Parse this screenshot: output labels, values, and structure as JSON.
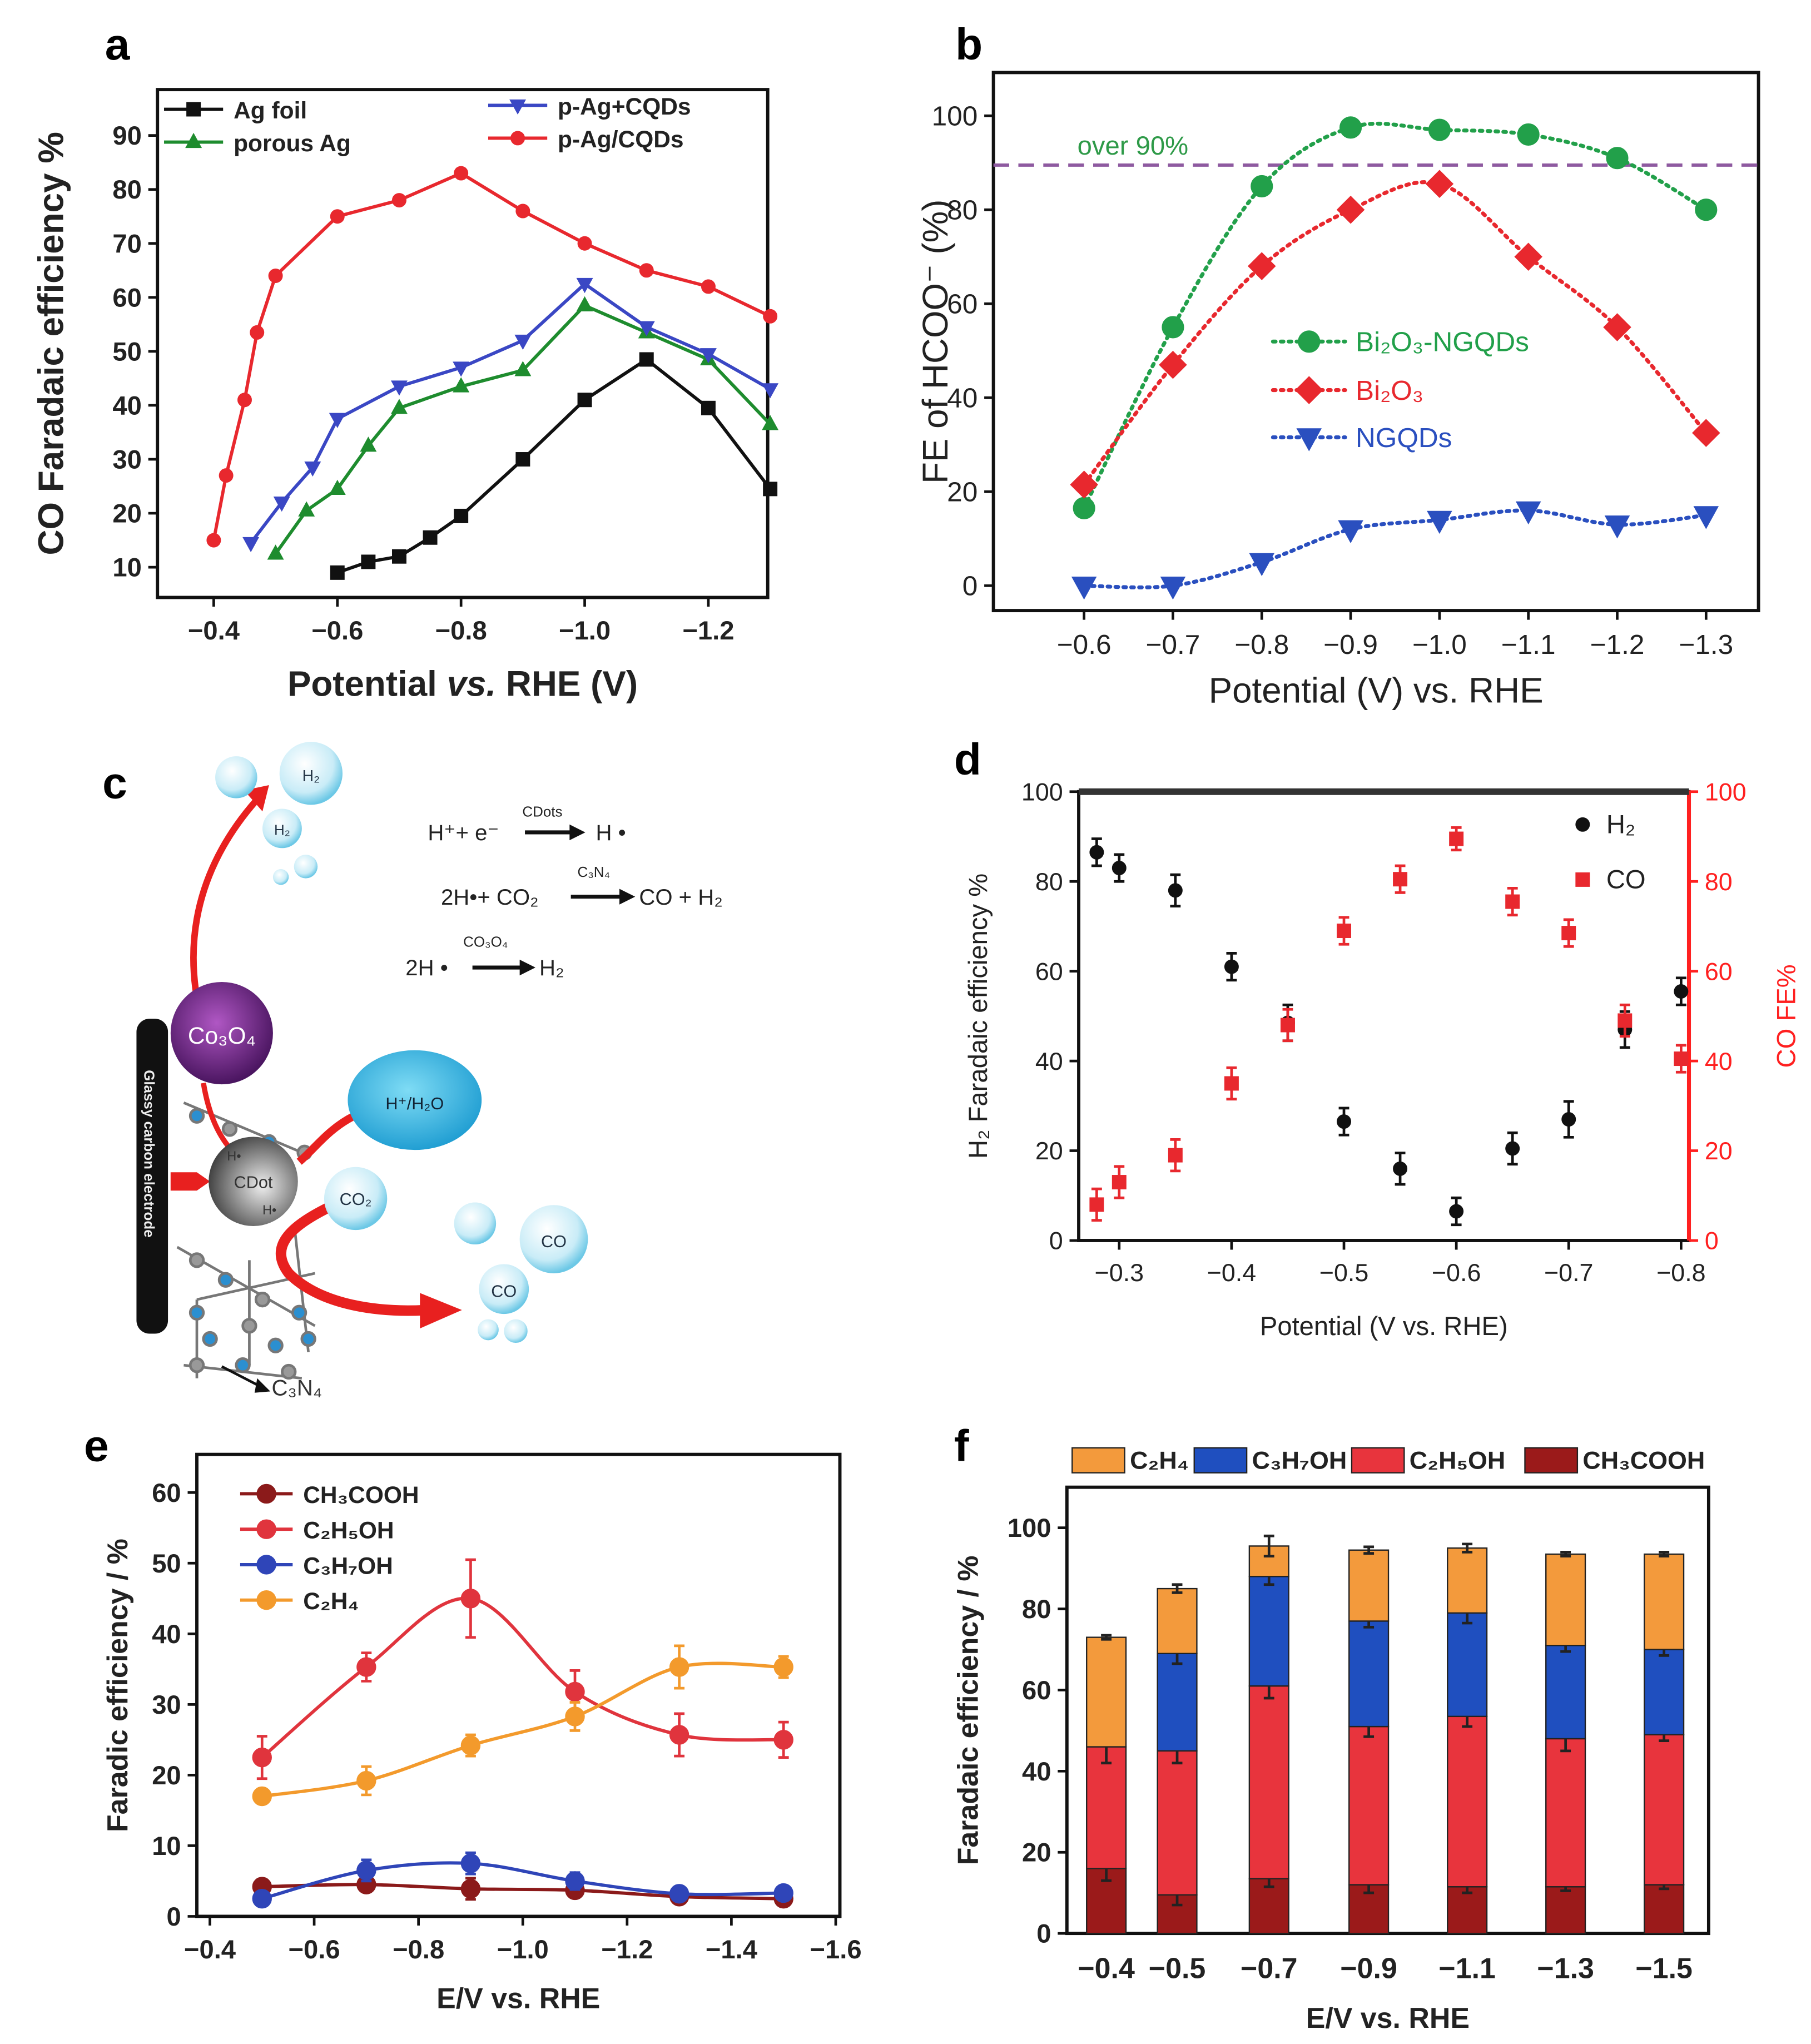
{
  "panel_labels": {
    "a": "a",
    "b": "b",
    "c": "c",
    "d": "d",
    "e": "e",
    "f": "f"
  },
  "diagram_c": {
    "electrode": "Glassy carbon electrode",
    "co3o4": "Co₃O₄",
    "water": "H⁺/H₂O",
    "cdot": "CDot",
    "co2": "CO₂",
    "co_1": "CO",
    "co_2": "CO",
    "h2_1": "H₂",
    "h2_2": "H₂",
    "c3n4": "C₃N₄",
    "h_radical": "H•",
    "eq1": {
      "left": "H⁺+ e⁻",
      "catalyst": "CDots",
      "right": "H •"
    },
    "eq2": {
      "left": "2H•+ CO₂",
      "catalyst": "C₃N₄",
      "right": "CO + H₂"
    },
    "eq3": {
      "left": "2H •",
      "catalyst": "CO₃O₄",
      "right": "H₂"
    }
  },
  "chart_data": [
    {
      "panel": "a",
      "type": "line",
      "xlabel_parts": [
        "Potential ",
        "vs.",
        " RHE (V)"
      ],
      "ylabel": "CO Faradaic efficiency %",
      "xlim": [
        -0.309,
        -1.296
      ],
      "ylim": [
        4.4,
        98.5
      ],
      "xticks": [
        -0.4,
        -0.6,
        -0.8,
        -1.0,
        -1.2
      ],
      "xtick_labels": [
        "−0.4",
        "−0.6",
        "−0.8",
        "−1.0",
        "−1.2"
      ],
      "yticks": [
        10,
        20,
        30,
        40,
        50,
        60,
        70,
        80,
        90
      ],
      "ytick_labels": [
        "10",
        "20",
        "30",
        "40",
        "50",
        "60",
        "70",
        "80",
        "90"
      ],
      "legend_position": "top",
      "series": [
        {
          "name": "Ag foil",
          "color": "#111111",
          "marker": "square",
          "x": [
            -0.6,
            -0.65,
            -0.7,
            -0.75,
            -0.8,
            -0.9,
            -1.0,
            -1.1,
            -1.2,
            -1.3
          ],
          "y": [
            9,
            11,
            12,
            15.5,
            19.5,
            30,
            41,
            48.5,
            39.5,
            24.5
          ]
        },
        {
          "name": "porous Ag",
          "color": "#1e8c2e",
          "marker": "triangle-up",
          "x": [
            -0.5,
            -0.55,
            -0.6,
            -0.65,
            -0.7,
            -0.8,
            -0.9,
            -1.0,
            -1.1,
            -1.2,
            -1.3
          ],
          "y": [
            12.5,
            20.5,
            24.5,
            32.5,
            39.5,
            43.5,
            46.5,
            58.5,
            53.5,
            48.5,
            36.5
          ]
        },
        {
          "name": "p-Ag+CQDs",
          "color": "#3a47c4",
          "marker": "triangle-down",
          "x": [
            -0.46,
            -0.51,
            -0.56,
            -0.6,
            -0.7,
            -0.8,
            -0.9,
            -1.0,
            -1.1,
            -1.2,
            -1.3
          ],
          "y": [
            14.5,
            22,
            28.5,
            37.5,
            43.5,
            47,
            52,
            62.5,
            54.5,
            49.5,
            43
          ]
        },
        {
          "name": "p-Ag/CQDs",
          "color": "#e8282e",
          "marker": "circle",
          "x": [
            -0.4,
            -0.42,
            -0.45,
            -0.47,
            -0.5,
            -0.6,
            -0.7,
            -0.8,
            -0.9,
            -1.0,
            -1.1,
            -1.2,
            -1.3
          ],
          "y": [
            15,
            27,
            41,
            53.5,
            64,
            75,
            78,
            83,
            76,
            70,
            65,
            62,
            56.5
          ]
        }
      ]
    },
    {
      "panel": "b",
      "type": "line",
      "xlabel": "Potential (V) vs. RHE",
      "ylabel": "FE of HCOO⁻ (%)",
      "xlim": [
        -0.498,
        -1.359
      ],
      "ylim": [
        -5.3,
        109.2
      ],
      "xticks": [
        -0.6,
        -0.7,
        -0.8,
        -0.9,
        -1.0,
        -1.1,
        -1.2,
        -1.3
      ],
      "xtick_labels": [
        "−0.6",
        "−0.7",
        "−0.8",
        "−0.9",
        "−1.0",
        "−1.1",
        "−1.2",
        "−1.3"
      ],
      "yticks": [
        0,
        20,
        40,
        60,
        80,
        100
      ],
      "ytick_labels": [
        "0",
        "20",
        "40",
        "60",
        "80",
        "100"
      ],
      "annotation": {
        "text": "over 90%",
        "y": 89.5,
        "color": "#2e9a48",
        "line_color": "#8e5aa0"
      },
      "legend_position": "center",
      "series": [
        {
          "name": "Bi₂O₃-NGQDs",
          "color": "#22a04a",
          "marker": "circle",
          "x": [
            -0.6,
            -0.7,
            -0.8,
            -0.9,
            -1.0,
            -1.1,
            -1.2,
            -1.3
          ],
          "y": [
            16.5,
            55,
            85,
            97.5,
            97,
            96,
            91,
            80
          ]
        },
        {
          "name": "Bi₂O₃",
          "color": "#e8282e",
          "marker": "diamond",
          "x": [
            -0.6,
            -0.7,
            -0.8,
            -0.9,
            -1.0,
            -1.1,
            -1.2,
            -1.3
          ],
          "y": [
            21.5,
            47,
            68,
            80,
            85.5,
            70,
            55,
            32.5
          ]
        },
        {
          "name": "NGQDs",
          "color": "#2a4fbf",
          "marker": "triangle-down",
          "x": [
            -0.6,
            -0.7,
            -0.8,
            -0.9,
            -1.0,
            -1.1,
            -1.2,
            -1.3
          ],
          "y": [
            0,
            0,
            5,
            12,
            14,
            16,
            13,
            15
          ]
        }
      ]
    },
    {
      "panel": "d",
      "type": "scatter",
      "xlabel": "Potential (V vs. RHE)",
      "ylabel": "H₂ Faradaic efficiency %",
      "y2label": "CO FE%",
      "xlim": [
        -0.264,
        -0.807
      ],
      "ylim": [
        0,
        100
      ],
      "y2lim": [
        0,
        100
      ],
      "xticks": [
        -0.3,
        -0.4,
        -0.5,
        -0.6,
        -0.7,
        -0.8
      ],
      "xtick_labels": [
        "−0.3",
        "−0.4",
        "−0.5",
        "−0.6",
        "−0.7",
        "−0.8"
      ],
      "yticks": [
        0,
        20,
        40,
        60,
        80,
        100
      ],
      "ytick_labels": [
        "0",
        "20",
        "40",
        "60",
        "80",
        "100"
      ],
      "legend_position": "top-right",
      "series": [
        {
          "name": "H₂",
          "color": "#111111",
          "marker": "circle",
          "axis": "left",
          "x": [
            -0.28,
            -0.3,
            -0.35,
            -0.4,
            -0.45,
            -0.5,
            -0.55,
            -0.6,
            -0.65,
            -0.7,
            -0.75,
            -0.8
          ],
          "y": [
            86.5,
            83,
            78,
            61,
            48.5,
            26.5,
            16,
            6.5,
            20.5,
            27,
            47,
            55.5
          ],
          "err": [
            3,
            3,
            3.5,
            3,
            4,
            3,
            3.5,
            3,
            3.5,
            4,
            4,
            3
          ]
        },
        {
          "name": "CO",
          "color": "#e8282e",
          "marker": "square",
          "axis": "right",
          "x": [
            -0.28,
            -0.3,
            -0.35,
            -0.4,
            -0.45,
            -0.5,
            -0.55,
            -0.6,
            -0.65,
            -0.7,
            -0.75,
            -0.8
          ],
          "y": [
            8,
            13,
            19,
            35,
            48,
            69,
            80.5,
            89.5,
            75.5,
            68.5,
            49,
            40.5
          ],
          "err": [
            3.5,
            3.5,
            3.5,
            3.5,
            3.5,
            3,
            3,
            2.5,
            3,
            3,
            3.5,
            3
          ]
        }
      ]
    },
    {
      "panel": "e",
      "type": "line",
      "xlabel": "E/V vs. RHE",
      "ylabel": "Faradic efficiency / %",
      "xlim": [
        -0.375,
        -1.608
      ],
      "ylim": [
        0,
        65.4
      ],
      "xticks": [
        -0.4,
        -0.6,
        -0.8,
        -1.0,
        -1.2,
        -1.4,
        -1.6
      ],
      "xtick_labels": [
        "−0.4",
        "−0.6",
        "−0.8",
        "−1.0",
        "−1.2",
        "−1.4",
        "−1.6"
      ],
      "yticks": [
        0,
        10,
        20,
        30,
        40,
        50,
        60
      ],
      "ytick_labels": [
        "0",
        "10",
        "20",
        "30",
        "40",
        "50",
        "60"
      ],
      "legend_position": "top-left",
      "series": [
        {
          "name": "CH₃COOH",
          "color": "#8b1a1a",
          "marker": "circle",
          "x": [
            -0.5,
            -0.7,
            -0.9,
            -1.1,
            -1.3,
            -1.5
          ],
          "y": [
            4.2,
            4.5,
            3.9,
            3.7,
            2.8,
            2.5
          ],
          "err": [
            1,
            1,
            1.5,
            1,
            0.8,
            0.8
          ]
        },
        {
          "name": "C₂H₅OH",
          "color": "#e0343d",
          "marker": "circle",
          "x": [
            -0.5,
            -0.7,
            -0.9,
            -1.1,
            -1.3,
            -1.5
          ],
          "y": [
            22.5,
            35.3,
            45,
            31.8,
            25.7,
            25
          ],
          "err": [
            3,
            2,
            5.5,
            3,
            3,
            2.5
          ]
        },
        {
          "name": "C₃H₇OH",
          "color": "#2f45b8",
          "marker": "circle",
          "x": [
            -0.5,
            -0.7,
            -0.9,
            -1.1,
            -1.3,
            -1.5
          ],
          "y": [
            2.5,
            6.5,
            7.5,
            5,
            3.2,
            3.3
          ],
          "err": [
            0.8,
            1.5,
            1.5,
            1.2,
            1,
            1
          ]
        },
        {
          "name": "C₂H₄",
          "color": "#f39a2c",
          "marker": "circle",
          "x": [
            -0.5,
            -0.7,
            -0.9,
            -1.1,
            -1.3,
            -1.5
          ],
          "y": [
            17,
            19.2,
            24.2,
            28.3,
            35.3,
            35.3
          ],
          "err": [
            1,
            2,
            1.5,
            2,
            3,
            1.5
          ]
        }
      ]
    },
    {
      "panel": "f",
      "type": "bar",
      "stacked": true,
      "xlabel": "E/V vs. RHE",
      "ylabel": "Faradaic efficiency / %",
      "categories": [
        "−0.4",
        "−0.5",
        "−0.7",
        "−0.9",
        "−1.1",
        "−1.3",
        "−1.5"
      ],
      "ylim": [
        0,
        110
      ],
      "yticks": [
        0,
        20,
        40,
        60,
        80,
        100
      ],
      "ytick_labels": [
        "0",
        "20",
        "40",
        "60",
        "80",
        "100"
      ],
      "legend_position": "top (outside)",
      "legend_order": [
        "C₂H₄",
        "C₃H₇OH",
        "C₂H₅OH",
        "CH₃COOH"
      ],
      "series": [
        {
          "name": "CH₃COOH",
          "color": "#9b1a1a",
          "values": [
            16,
            9.5,
            13.5,
            12,
            11.5,
            11.5,
            12
          ],
          "err": [
            3,
            2.5,
            2,
            2,
            1.5,
            1,
            1
          ]
        },
        {
          "name": "C₂H₅OH",
          "color": "#e8343d",
          "values": [
            30,
            35.5,
            47.5,
            39,
            42,
            36.5,
            37
          ],
          "err": [
            4,
            3,
            3,
            2.5,
            2.5,
            3,
            1.5
          ]
        },
        {
          "name": "C₃H₇OH",
          "color": "#1f4fbf",
          "values": [
            0,
            24,
            27,
            26,
            25.5,
            23,
            21
          ],
          "err": [
            0,
            2.5,
            2,
            1.5,
            2.5,
            1.5,
            1.5
          ]
        },
        {
          "name": "C₂H₄",
          "color": "#f39a3c",
          "values": [
            27,
            16,
            7.5,
            17.5,
            16,
            22.5,
            23.5
          ],
          "err": [
            0.5,
            1,
            2.5,
            0.8,
            1,
            0.5,
            0.5
          ]
        }
      ]
    }
  ]
}
